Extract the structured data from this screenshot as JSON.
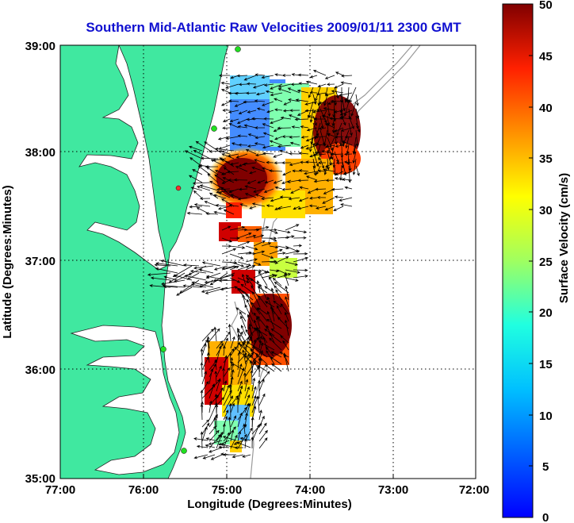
{
  "title": "Southern Mid-Atlantic Raw Velocities 2009/01/11 2300 GMT",
  "xlabel": "Longitude (Degrees:Minutes)",
  "ylabel": "Latitude (Degrees:Minutes)",
  "x_ticks": [
    "77:00",
    "76:00",
    "75:00",
    "74:00",
    "73:00",
    "72:00"
  ],
  "y_ticks": [
    "39:00",
    "38:00",
    "37:00",
    "36:00",
    "35:00"
  ],
  "colorbar": {
    "label": "Surface Velocity (cm/s)",
    "ticks": [
      "50",
      "45",
      "40",
      "35",
      "30",
      "25",
      "20",
      "15",
      "10",
      "5",
      "0"
    ],
    "range": [
      0,
      50
    ]
  },
  "colors": {
    "land": "#40e8a0",
    "title": "#1010d0",
    "bathymetry": "#999999"
  }
}
